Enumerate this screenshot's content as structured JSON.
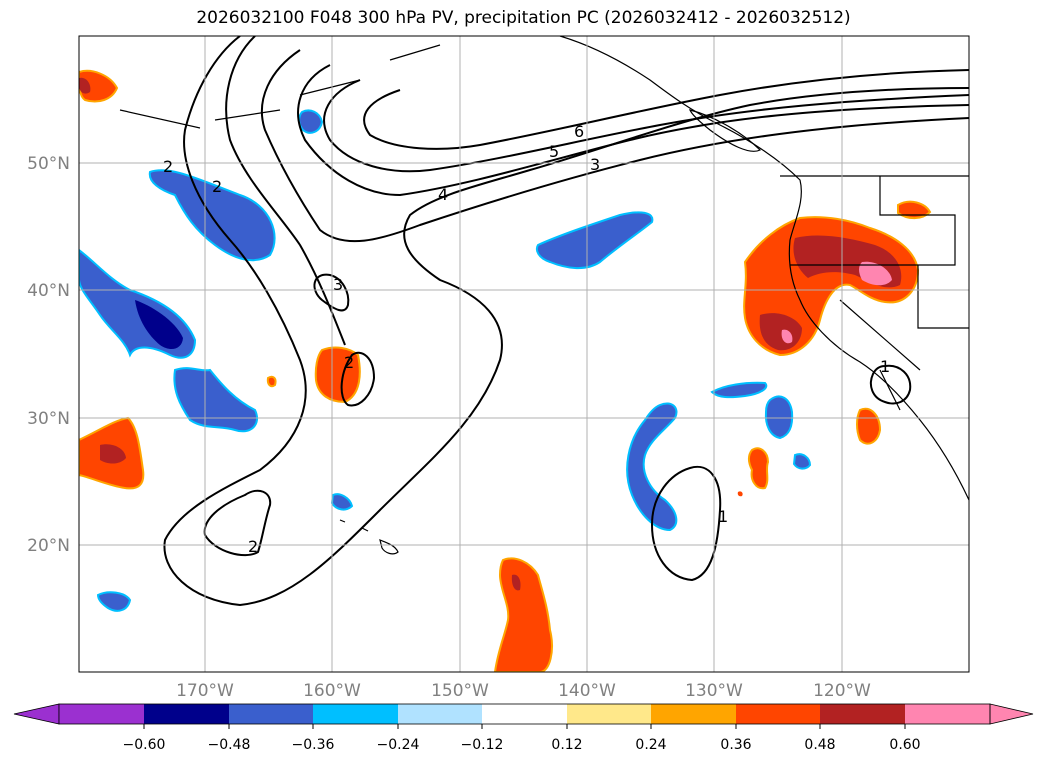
{
  "title": "2026032100 F048 300 hPa PV, precipitation PC (2026032412 - 2026032512)",
  "lat_labels": [
    "50°N",
    "40°N",
    "30°N",
    "20°N"
  ],
  "lon_labels": [
    "170°W",
    "160°W",
    "150°W",
    "140°W",
    "130°W",
    "120°W"
  ],
  "contour_labels": [
    "6",
    "5",
    "3",
    "4",
    "2",
    "2",
    "3",
    "2",
    "2",
    "1",
    "1"
  ],
  "colorbar": {
    "ticks": [
      "−0.60",
      "−0.48",
      "−0.36",
      "−0.24",
      "−0.12",
      "0.12",
      "0.24",
      "0.36",
      "0.48",
      "0.60"
    ],
    "colors": [
      "#9b30d0",
      "#00008b",
      "#3a5fcd",
      "#00bfff",
      "#b0e2ff",
      "#ffffff",
      "#ffe88a",
      "#ffa500",
      "#ff4500",
      "#b22222",
      "#ff85b0"
    ]
  },
  "colors": {
    "blue_fill": "#3a5fcd",
    "dark_blue_fill": "#00008b",
    "cyan_edge": "#00bfff",
    "orange_red_fill": "#ff4500",
    "dark_red_fill": "#b22222",
    "pink_fill": "#ff85b0",
    "gridline": "#b0b0b0"
  }
}
